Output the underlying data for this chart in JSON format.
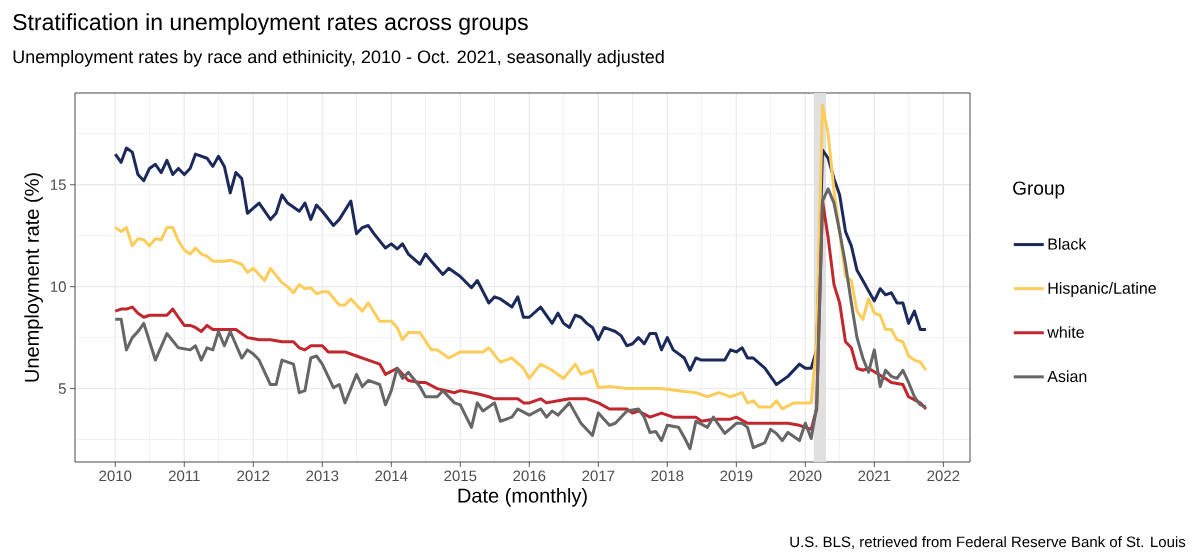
{
  "chart_data": {
    "type": "line",
    "title": "Stratification in unemployment rates across groups",
    "subtitle": "Unemployment rates by race and ethinicity, 2010 - Oct. 2021, seasonally adjusted",
    "xlabel": "Date (monthly)",
    "ylabel": "Unemployment rate (%)",
    "legend_title": "Group",
    "annotations": [
      "U.S. BLS, retrieved from Federal Reserve Bank of St. Louis"
    ],
    "xlim": [
      "2009-06-02",
      "2022-05-22"
    ],
    "ylim": [
      1.4,
      19.5
    ],
    "xticks": [
      "2010",
      {
        "value": "2010-07",
        "label": null
      },
      "2011",
      {
        "value": "2011-07",
        "label": null
      },
      "2012",
      {
        "value": "2012-07",
        "label": null
      },
      "2013",
      {
        "value": "2013-07",
        "label": null
      },
      "2014",
      {
        "value": "2014-07",
        "label": null
      },
      "2015",
      {
        "value": "2015-07",
        "label": null
      },
      "2016",
      {
        "value": "2016-07",
        "label": null
      },
      "2017",
      {
        "value": "2017-07",
        "label": null
      },
      "2018",
      {
        "value": "2018-07",
        "label": null
      },
      "2019",
      {
        "value": "2019-07",
        "label": null
      },
      "2020",
      {
        "value": "2020-07",
        "label": null
      },
      "2021",
      {
        "value": "2021-07",
        "label": null
      },
      "2022"
    ],
    "yticks": [
      {
        "value": 2.5,
        "label": null
      },
      5,
      {
        "value": 7.5,
        "label": null
      },
      10,
      {
        "value": 12.5,
        "label": null
      },
      15,
      {
        "value": 17.5,
        "label": null
      }
    ],
    "grid": true,
    "legend": "right",
    "bands": [
      {
        "axis": "x",
        "from": "2020-02-15",
        "to": "2020-04-20",
        "color": "#e0e0e0"
      }
    ],
    "series": [
      {
        "name": "Black",
        "color": "#1b2a5a",
        "x": [
          "2010-01",
          "2010-02",
          "2010-03",
          "2010-04",
          "2010-05",
          "2010-06",
          "2010-07",
          "2010-08",
          "2010-09",
          "2010-10",
          "2010-11",
          "2010-12",
          "2011-01",
          "2011-02",
          "2011-03",
          "2011-05",
          "2011-06",
          "2011-07",
          "2011-08",
          "2011-09",
          "2011-10",
          "2011-11",
          "2011-12",
          "2012-02",
          "2012-04",
          "2012-05",
          "2012-06",
          "2012-07",
          "2012-09",
          "2012-10",
          "2012-11",
          "2012-12",
          "2013-01",
          "2013-03",
          "2013-04",
          "2013-06",
          "2013-07",
          "2013-08",
          "2013-09",
          "2013-10",
          "2013-12",
          "2014-01",
          "2014-02",
          "2014-03",
          "2014-04",
          "2014-06",
          "2014-07",
          "2014-08",
          "2014-10",
          "2014-11",
          "2015-01",
          "2015-03",
          "2015-04",
          "2015-06",
          "2015-07",
          "2015-08",
          "2015-10",
          "2015-11",
          "2015-12",
          "2016-01",
          "2016-03",
          "2016-05",
          "2016-06",
          "2016-07",
          "2016-08",
          "2016-09",
          "2016-10",
          "2016-11",
          "2016-12",
          "2017-01",
          "2017-02",
          "2017-04",
          "2017-05",
          "2017-06",
          "2017-07",
          "2017-08",
          "2017-09",
          "2017-10",
          "2017-11",
          "2017-12",
          "2018-01",
          "2018-02",
          "2018-04",
          "2018-05",
          "2018-06",
          "2018-07",
          "2018-09",
          "2018-11",
          "2018-12",
          "2019-01",
          "2019-02",
          "2019-03",
          "2019-04",
          "2019-06",
          "2019-08",
          "2019-10",
          "2019-12",
          "2020-01",
          "2020-02",
          "2020-03",
          "2020-04",
          "2020-05",
          "2020-06",
          "2020-07",
          "2020-08",
          "2020-09",
          "2020-10",
          "2020-11",
          "2020-12",
          "2021-01",
          "2021-02",
          "2021-03",
          "2021-04",
          "2021-05",
          "2021-06",
          "2021-07",
          "2021-08",
          "2021-09",
          "2021-10"
        ],
        "values": [
          16.5,
          16.1,
          16.8,
          16.6,
          15.5,
          15.2,
          15.8,
          16.0,
          15.6,
          16.2,
          15.5,
          15.8,
          15.5,
          15.8,
          16.5,
          16.3,
          15.9,
          16.4,
          15.9,
          14.6,
          15.6,
          15.3,
          13.6,
          14.1,
          13.3,
          13.6,
          14.5,
          14.1,
          13.7,
          14.1,
          13.3,
          14.0,
          13.7,
          13.0,
          13.3,
          14.2,
          12.6,
          12.9,
          13.0,
          12.6,
          11.9,
          12.1,
          11.85,
          12.1,
          11.6,
          11.1,
          11.6,
          11.25,
          10.6,
          10.9,
          10.5,
          9.95,
          10.3,
          9.2,
          9.5,
          9.4,
          9.0,
          9.5,
          8.5,
          8.5,
          9.0,
          8.2,
          8.7,
          8.2,
          8.0,
          8.6,
          8.5,
          8.2,
          8.0,
          7.4,
          8.0,
          7.8,
          7.6,
          7.1,
          7.2,
          7.5,
          7.2,
          7.7,
          7.7,
          6.9,
          7.5,
          6.9,
          6.5,
          5.9,
          6.5,
          6.4,
          6.4,
          6.4,
          6.9,
          6.8,
          7.0,
          6.5,
          6.5,
          6.0,
          5.2,
          5.6,
          6.2,
          6.0,
          6.0,
          6.9,
          16.7,
          16.3,
          15.3,
          14.5,
          12.7,
          12.0,
          10.8,
          10.3,
          9.8,
          9.3,
          9.9,
          9.6,
          9.7,
          9.2,
          9.2,
          8.2,
          8.8,
          7.9,
          7.9
        ]
      },
      {
        "name": "Hispanic/Latine",
        "color": "#fdcd5c",
        "x": [
          "2010-01",
          "2010-02",
          "2010-03",
          "2010-04",
          "2010-05",
          "2010-06",
          "2010-07",
          "2010-08",
          "2010-09",
          "2010-10",
          "2010-11",
          "2010-12",
          "2011-01",
          "2011-02",
          "2011-03",
          "2011-04",
          "2011-05",
          "2011-06",
          "2011-08",
          "2011-09",
          "2011-11",
          "2011-12",
          "2012-01",
          "2012-03",
          "2012-04",
          "2012-06",
          "2012-07",
          "2012-08",
          "2012-09",
          "2012-10",
          "2012-11",
          "2012-12",
          "2013-01",
          "2013-02",
          "2013-04",
          "2013-05",
          "2013-06",
          "2013-08",
          "2013-09",
          "2013-11",
          "2014-01",
          "2014-02",
          "2014-03",
          "2014-04",
          "2014-06",
          "2014-08",
          "2014-09",
          "2014-11",
          "2015-01",
          "2015-05",
          "2015-06",
          "2015-08",
          "2015-10",
          "2015-12",
          "2016-01",
          "2016-03",
          "2016-05",
          "2016-07",
          "2016-09",
          "2016-10",
          "2016-12",
          "2017-01",
          "2017-03",
          "2017-06",
          "2017-09",
          "2017-12",
          "2018-03",
          "2018-06",
          "2018-08",
          "2018-10",
          "2018-12",
          "2019-02",
          "2019-03",
          "2019-04",
          "2019-05",
          "2019-07",
          "2019-08",
          "2019-09",
          "2019-11",
          "2020-01",
          "2020-02",
          "2020-03",
          "2020-04",
          "2020-05",
          "2020-06",
          "2020-07",
          "2020-08",
          "2020-09",
          "2020-10",
          "2020-11",
          "2020-12",
          "2021-01",
          "2021-02",
          "2021-03",
          "2021-04",
          "2021-05",
          "2021-06",
          "2021-07",
          "2021-08",
          "2021-09",
          "2021-10"
        ],
        "values": [
          12.9,
          12.7,
          12.9,
          12.0,
          12.35,
          12.3,
          12.0,
          12.35,
          12.3,
          12.9,
          12.9,
          12.25,
          11.8,
          11.6,
          11.9,
          11.6,
          11.5,
          11.25,
          11.25,
          11.3,
          11.1,
          10.7,
          10.9,
          10.3,
          10.9,
          10.2,
          10.0,
          9.7,
          10.1,
          9.9,
          9.95,
          9.65,
          9.75,
          9.75,
          9.1,
          9.1,
          9.4,
          8.8,
          9.2,
          8.3,
          8.3,
          8.0,
          7.4,
          7.75,
          7.75,
          6.9,
          6.9,
          6.5,
          6.8,
          6.8,
          7.0,
          6.3,
          6.5,
          6.0,
          5.5,
          6.2,
          5.9,
          5.5,
          6.2,
          5.7,
          5.9,
          5.05,
          5.1,
          5.0,
          5.0,
          5.0,
          4.9,
          4.8,
          4.6,
          4.8,
          4.6,
          4.8,
          4.3,
          4.4,
          4.1,
          4.1,
          4.4,
          4.0,
          4.3,
          4.3,
          4.3,
          7.2,
          18.9,
          17.5,
          14.7,
          12.7,
          10.5,
          10.3,
          8.8,
          8.4,
          9.4,
          8.7,
          8.6,
          7.9,
          7.9,
          7.4,
          7.3,
          6.6,
          6.4,
          6.3,
          5.9
        ]
      },
      {
        "name": "white",
        "color": "#c1272d",
        "x": [
          "2010-01",
          "2010-02",
          "2010-03",
          "2010-04",
          "2010-05",
          "2010-06",
          "2010-07",
          "2010-09",
          "2010-10",
          "2010-11",
          "2010-12",
          "2011-01",
          "2011-02",
          "2011-03",
          "2011-04",
          "2011-05",
          "2011-06",
          "2011-08",
          "2011-10",
          "2011-12",
          "2012-02",
          "2012-04",
          "2012-06",
          "2012-08",
          "2012-09",
          "2012-10",
          "2012-11",
          "2013-01",
          "2013-02",
          "2013-05",
          "2013-07",
          "2013-09",
          "2013-11",
          "2013-12",
          "2014-02",
          "2014-04",
          "2014-06",
          "2014-07",
          "2014-09",
          "2014-12",
          "2015-01",
          "2015-04",
          "2015-06",
          "2015-07",
          "2015-11",
          "2015-12",
          "2016-01",
          "2016-03",
          "2016-04",
          "2016-06",
          "2016-08",
          "2016-11",
          "2017-01",
          "2017-03",
          "2017-06",
          "2017-07",
          "2017-08",
          "2017-10",
          "2017-12",
          "2018-02",
          "2018-06",
          "2018-07",
          "2018-09",
          "2018-12",
          "2019-01",
          "2019-03",
          "2019-08",
          "2019-10",
          "2019-12",
          "2020-01",
          "2020-02",
          "2020-03",
          "2020-04",
          "2020-05",
          "2020-06",
          "2020-07",
          "2020-08",
          "2020-09",
          "2020-10",
          "2020-11",
          "2020-12",
          "2021-03",
          "2021-04",
          "2021-06",
          "2021-07",
          "2021-09",
          "2021-10"
        ],
        "values": [
          8.8,
          8.9,
          8.9,
          9.0,
          8.7,
          8.5,
          8.6,
          8.6,
          8.6,
          8.9,
          8.5,
          8.1,
          8.1,
          8.0,
          7.8,
          8.1,
          7.9,
          7.9,
          7.9,
          7.5,
          7.4,
          7.4,
          7.3,
          7.3,
          7.0,
          6.9,
          7.1,
          7.1,
          6.8,
          6.8,
          6.6,
          6.4,
          6.2,
          5.7,
          6.0,
          5.4,
          5.3,
          5.3,
          5.0,
          4.8,
          4.9,
          4.75,
          4.6,
          4.5,
          4.5,
          4.3,
          4.3,
          4.5,
          4.3,
          4.4,
          4.5,
          4.5,
          4.3,
          4.0,
          4.0,
          3.8,
          3.9,
          3.6,
          3.8,
          3.6,
          3.6,
          3.4,
          3.5,
          3.5,
          3.6,
          3.3,
          3.3,
          3.3,
          3.2,
          3.1,
          3.0,
          4.0,
          14.2,
          12.4,
          10.1,
          9.2,
          7.3,
          7.0,
          6.0,
          5.9,
          6.0,
          5.5,
          5.3,
          5.2,
          4.6,
          4.3,
          4.0
        ]
      },
      {
        "name": "Asian",
        "color": "#666666",
        "x": [
          "2010-01",
          "2010-02",
          "2010-03",
          "2010-04",
          "2010-05",
          "2010-06",
          "2010-08",
          "2010-10",
          "2010-12",
          "2011-02",
          "2011-03",
          "2011-04",
          "2011-05",
          "2011-06",
          "2011-07",
          "2011-08",
          "2011-09",
          "2011-11",
          "2011-12",
          "2012-01",
          "2012-02",
          "2012-04",
          "2012-05",
          "2012-06",
          "2012-08",
          "2012-09",
          "2012-10",
          "2012-11",
          "2012-12",
          "2013-01",
          "2013-03",
          "2013-04",
          "2013-05",
          "2013-06",
          "2013-07",
          "2013-08",
          "2013-09",
          "2013-11",
          "2013-12",
          "2014-01",
          "2014-02",
          "2014-03",
          "2014-04",
          "2014-06",
          "2014-07",
          "2014-09",
          "2014-10",
          "2014-12",
          "2015-01",
          "2015-03",
          "2015-04",
          "2015-05",
          "2015-07",
          "2015-08",
          "2015-10",
          "2015-11",
          "2016-01",
          "2016-03",
          "2016-04",
          "2016-05",
          "2016-06",
          "2016-08",
          "2016-10",
          "2016-12",
          "2017-01",
          "2017-03",
          "2017-04",
          "2017-06",
          "2017-08",
          "2017-09",
          "2017-10",
          "2017-11",
          "2017-12",
          "2018-01",
          "2018-03",
          "2018-04",
          "2018-05",
          "2018-06",
          "2018-08",
          "2018-09",
          "2018-11",
          "2019-01",
          "2019-02",
          "2019-03",
          "2019-04",
          "2019-06",
          "2019-07",
          "2019-08",
          "2019-09",
          "2019-10",
          "2019-12",
          "2020-01",
          "2020-02",
          "2020-03",
          "2020-04",
          "2020-05",
          "2020-06",
          "2020-07",
          "2020-08",
          "2020-09",
          "2020-10",
          "2020-11",
          "2020-12",
          "2021-01",
          "2021-02",
          "2021-03",
          "2021-04",
          "2021-05",
          "2021-06",
          "2021-07",
          "2021-08",
          "2021-09",
          "2021-10"
        ],
        "values": [
          8.4,
          8.4,
          6.9,
          7.5,
          7.8,
          8.2,
          6.4,
          7.7,
          7.0,
          6.9,
          7.1,
          6.4,
          7.0,
          6.9,
          7.8,
          7.1,
          7.8,
          6.5,
          6.9,
          6.7,
          6.4,
          5.2,
          5.2,
          6.4,
          6.2,
          4.8,
          4.9,
          6.5,
          6.6,
          6.2,
          5.05,
          5.2,
          4.3,
          5.0,
          5.7,
          5.1,
          5.4,
          5.2,
          4.2,
          4.9,
          6.0,
          5.5,
          5.8,
          5.1,
          4.6,
          4.6,
          4.9,
          4.3,
          4.2,
          3.1,
          4.3,
          3.9,
          4.3,
          3.4,
          3.6,
          4.0,
          3.7,
          4.0,
          3.6,
          3.9,
          3.7,
          4.3,
          3.3,
          2.7,
          3.8,
          3.2,
          3.3,
          3.9,
          4.0,
          3.6,
          2.85,
          2.9,
          2.45,
          3.2,
          3.1,
          2.6,
          2.05,
          3.4,
          3.1,
          3.6,
          2.8,
          3.3,
          3.3,
          3.1,
          2.1,
          2.35,
          3.0,
          2.8,
          2.45,
          2.85,
          2.45,
          3.3,
          2.55,
          4.1,
          14.2,
          14.8,
          14.1,
          12.7,
          11.1,
          9.2,
          7.5,
          6.5,
          5.8,
          6.9,
          5.1,
          5.9,
          5.6,
          5.5,
          5.9,
          5.3,
          4.6,
          4.2,
          4.1
        ]
      }
    ]
  }
}
